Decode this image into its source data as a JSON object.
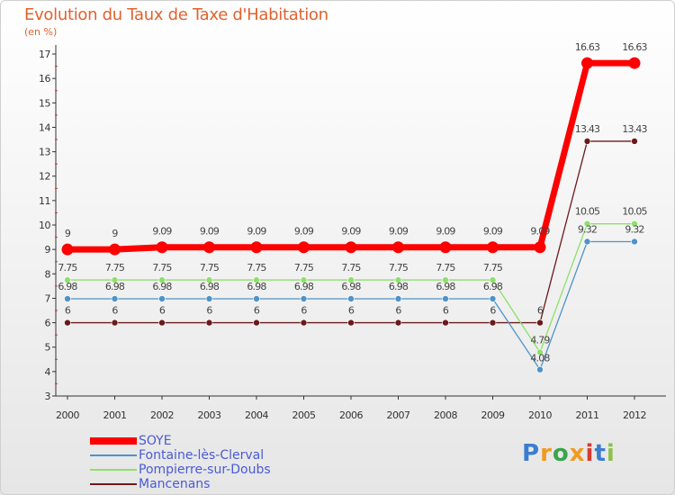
{
  "chart_data": {
    "type": "line",
    "title": "Evolution du Taux de Taxe d'Habitation",
    "subtitle": "(en %)",
    "categories": [
      "2000",
      "2001",
      "2002",
      "2003",
      "2004",
      "2005",
      "2006",
      "2007",
      "2008",
      "2009",
      "2010",
      "2011",
      "2012"
    ],
    "y_ticks": [
      "3",
      "4",
      "5",
      "6",
      "7",
      "8",
      "9",
      "10",
      "11",
      "12",
      "13",
      "14",
      "15",
      "16",
      "17"
    ],
    "ylim": [
      3,
      17
    ],
    "grid": false,
    "legend_position": "bottom-left",
    "series": [
      {
        "name": "SOYE",
        "color": "#ff0000",
        "values": [
          9,
          9,
          9.09,
          9.09,
          9.09,
          9.09,
          9.09,
          9.09,
          9.09,
          9.09,
          9.09,
          16.63,
          16.63
        ],
        "labels": [
          "9",
          "9",
          "9.09",
          "9.09",
          "9.09",
          "9.09",
          "9.09",
          "9.09",
          "9.09",
          "9.09",
          "9.09",
          "16.63",
          "16.63"
        ]
      },
      {
        "name": "Fontaine-lès-Clerval",
        "color": "#4f93c7",
        "values": [
          6.98,
          6.98,
          6.98,
          6.98,
          6.98,
          6.98,
          6.98,
          6.98,
          6.98,
          6.98,
          4.08,
          9.32,
          9.32
        ],
        "labels": [
          "6.98",
          "6.98",
          "6.98",
          "6.98",
          "6.98",
          "6.98",
          "6.98",
          "6.98",
          "6.98",
          "6.98",
          "4.08",
          "9.32",
          "9.32"
        ]
      },
      {
        "name": "Pompierre-sur-Doubs",
        "color": "#8ee06a",
        "values": [
          7.75,
          7.75,
          7.75,
          7.75,
          7.75,
          7.75,
          7.75,
          7.75,
          7.75,
          7.75,
          4.79,
          10.05,
          10.05
        ],
        "labels": [
          "7.75",
          "7.75",
          "7.75",
          "7.75",
          "7.75",
          "7.75",
          "7.75",
          "7.75",
          "7.75",
          "7.75",
          "4.79",
          "10.05",
          "10.05"
        ]
      },
      {
        "name": "Mancenans",
        "color": "#6b1a1a",
        "values": [
          6,
          6,
          6,
          6,
          6,
          6,
          6,
          6,
          6,
          6,
          6,
          13.43,
          13.43
        ],
        "labels": [
          "6",
          "6",
          "6",
          "6",
          "6",
          "6",
          "6",
          "6",
          "6",
          "6",
          "6",
          "13.43",
          "13.43"
        ]
      }
    ]
  },
  "brand": {
    "letters": [
      "P",
      "r",
      "o",
      "x",
      "i",
      "t",
      "i"
    ],
    "colors": [
      "#3b7ecf",
      "#f29a1e",
      "#3aa54a",
      "#f29a1e",
      "#d63b2f",
      "#3b7ecf",
      "#8bc34a"
    ]
  }
}
